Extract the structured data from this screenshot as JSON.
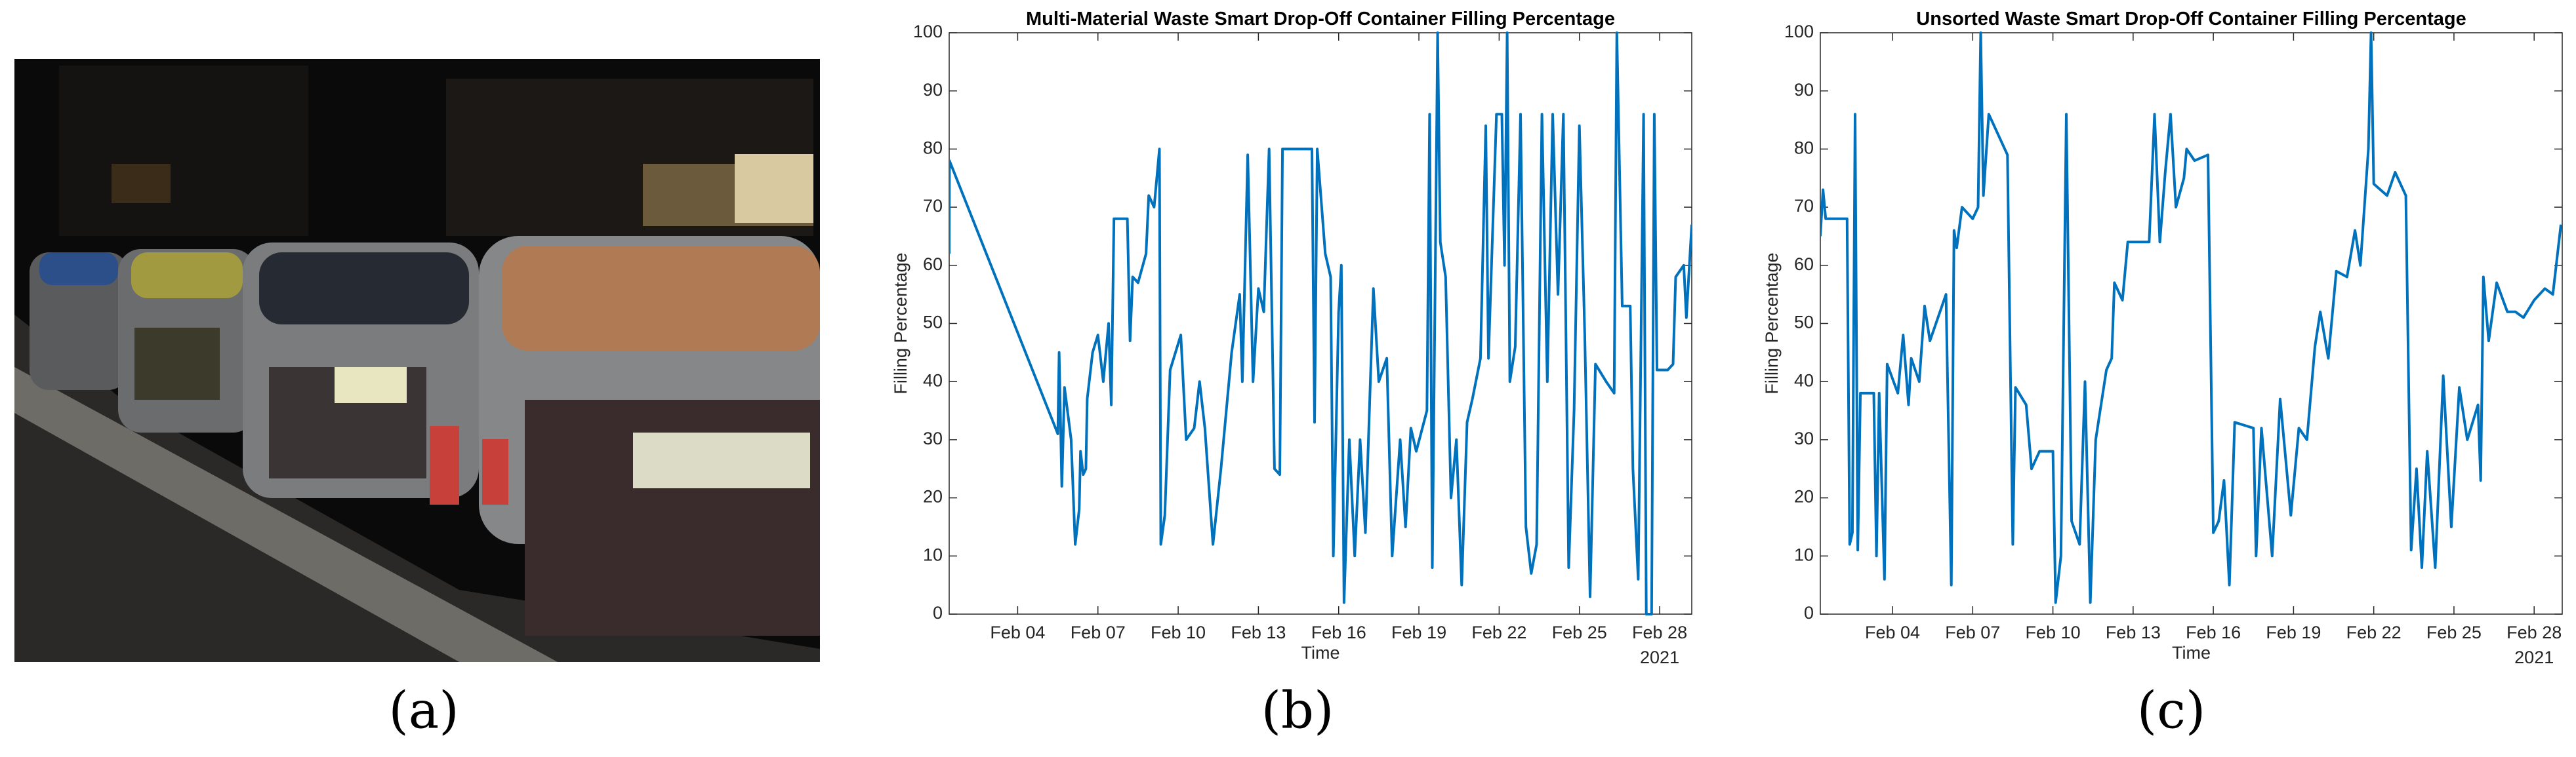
{
  "figure_labels": [
    "(a)",
    "(b)",
    "(c)"
  ],
  "chart_data": [
    {
      "type": "line",
      "title": "Multi-Material Waste Smart Drop-Off Container Filling Percentage",
      "xlabel": "Time",
      "ylabel": "Filling Percentage",
      "date_annotation": "2021",
      "color": "#0072bd",
      "xlim": [
        1.44,
        29.2
      ],
      "ylim": [
        0,
        100
      ],
      "xticks": [
        {
          "value": 4,
          "label": "Feb 04"
        },
        {
          "value": 7,
          "label": "Feb 07"
        },
        {
          "value": 10,
          "label": "Feb 10"
        },
        {
          "value": 13,
          "label": "Feb 13"
        },
        {
          "value": 16,
          "label": "Feb 16"
        },
        {
          "value": 19,
          "label": "Feb 19"
        },
        {
          "value": 22,
          "label": "Feb 22"
        },
        {
          "value": 25,
          "label": "Feb 25"
        },
        {
          "value": 28,
          "label": "Feb 28"
        }
      ],
      "yticks": [
        0,
        10,
        20,
        30,
        40,
        50,
        60,
        70,
        80,
        90,
        100
      ],
      "x": [
        1.44,
        1.45,
        5.5,
        5.55,
        5.65,
        5.75,
        6.0,
        6.15,
        6.3,
        6.35,
        6.45,
        6.55,
        6.6,
        6.8,
        7.0,
        7.2,
        7.4,
        7.5,
        7.6,
        8.1,
        8.2,
        8.3,
        8.5,
        8.8,
        8.9,
        9.1,
        9.3,
        9.35,
        9.5,
        9.7,
        10.1,
        10.3,
        10.6,
        10.8,
        11.0,
        11.3,
        11.6,
        12.0,
        12.3,
        12.4,
        12.6,
        12.8,
        13.0,
        13.2,
        13.4,
        13.6,
        13.8,
        13.9,
        15.0,
        15.1,
        15.2,
        15.5,
        15.7,
        15.8,
        16.0,
        16.1,
        16.2,
        16.4,
        16.6,
        16.8,
        17.0,
        17.3,
        17.5,
        17.8,
        18.0,
        18.3,
        18.5,
        18.7,
        18.9,
        19.3,
        19.4,
        19.5,
        19.7,
        19.8,
        20.0,
        20.2,
        20.4,
        20.6,
        20.8,
        21.0,
        21.3,
        21.5,
        21.6,
        21.9,
        22.1,
        22.2,
        22.3,
        22.4,
        22.6,
        22.8,
        23.0,
        23.2,
        23.4,
        23.6,
        23.8,
        24.0,
        24.2,
        24.4,
        24.6,
        24.8,
        25.0,
        25.2,
        25.4,
        25.6,
        26.0,
        26.3,
        26.4,
        26.6,
        26.9,
        27.0,
        27.2,
        27.4,
        27.5,
        27.7,
        27.8,
        27.9,
        28.3,
        28.5,
        28.6,
        28.9,
        29.0,
        29.2
      ],
      "values": [
        62,
        78,
        31,
        45,
        22,
        39,
        30,
        12,
        18,
        28,
        24,
        25,
        37,
        45,
        48,
        40,
        50,
        36,
        68,
        68,
        47,
        58,
        57,
        62,
        72,
        70,
        80,
        12,
        17,
        42,
        48,
        30,
        32,
        40,
        32,
        12,
        25,
        45,
        55,
        40,
        79,
        40,
        56,
        52,
        80,
        25,
        24,
        80,
        80,
        33,
        80,
        62,
        58,
        10,
        52,
        60,
        2,
        30,
        10,
        30,
        14,
        56,
        40,
        44,
        10,
        30,
        15,
        32,
        28,
        35,
        86,
        8,
        100,
        64,
        58,
        20,
        30,
        5,
        33,
        37,
        44,
        84,
        44,
        86,
        86,
        60,
        100,
        40,
        46,
        86,
        15,
        7,
        12,
        86,
        40,
        86,
        55,
        86,
        8,
        35,
        84,
        48,
        3,
        43,
        40,
        38,
        100,
        53,
        53,
        25,
        6,
        86,
        0,
        0,
        86,
        42,
        42,
        43,
        58,
        60,
        51,
        67
      ]
    },
    {
      "type": "line",
      "title": "Unsorted Waste Smart Drop-Off Container Filling Percentage",
      "xlabel": "Time",
      "ylabel": "Filling Percentage",
      "date_annotation": "2021",
      "color": "#0072bd",
      "xlim": [
        1.3,
        29.05
      ],
      "ylim": [
        0,
        100
      ],
      "xticks": [
        {
          "value": 4,
          "label": "Feb 04"
        },
        {
          "value": 7,
          "label": "Feb 07"
        },
        {
          "value": 10,
          "label": "Feb 10"
        },
        {
          "value": 13,
          "label": "Feb 13"
        },
        {
          "value": 16,
          "label": "Feb 16"
        },
        {
          "value": 19,
          "label": "Feb 19"
        },
        {
          "value": 22,
          "label": "Feb 22"
        },
        {
          "value": 25,
          "label": "Feb 25"
        },
        {
          "value": 28,
          "label": "Feb 28"
        }
      ],
      "yticks": [
        0,
        10,
        20,
        30,
        40,
        50,
        60,
        70,
        80,
        90,
        100
      ],
      "x": [
        1.3,
        1.4,
        1.5,
        2.3,
        2.4,
        2.5,
        2.6,
        2.7,
        2.8,
        3.3,
        3.4,
        3.5,
        3.7,
        3.8,
        4.2,
        4.4,
        4.6,
        4.7,
        5.0,
        5.2,
        5.4,
        6.0,
        6.2,
        6.3,
        6.4,
        6.6,
        7.0,
        7.2,
        7.3,
        7.4,
        7.6,
        8.0,
        8.3,
        8.5,
        8.6,
        9.0,
        9.2,
        9.5,
        10.0,
        10.1,
        10.3,
        10.5,
        10.7,
        11.0,
        11.2,
        11.4,
        11.6,
        12.0,
        12.2,
        12.3,
        12.6,
        12.8,
        13.6,
        13.8,
        14.0,
        14.2,
        14.4,
        14.6,
        14.9,
        15.0,
        15.3,
        15.8,
        16.0,
        16.2,
        16.4,
        16.6,
        16.8,
        17.5,
        17.6,
        17.8,
        18.2,
        18.5,
        18.9,
        19.2,
        19.5,
        19.8,
        20.0,
        20.3,
        20.6,
        21.0,
        21.3,
        21.5,
        21.8,
        21.9,
        22.0,
        22.5,
        22.8,
        23.2,
        23.4,
        23.6,
        23.8,
        24.0,
        24.3,
        24.6,
        24.9,
        25.2,
        25.5,
        25.9,
        26.0,
        26.1,
        26.3,
        26.6,
        27.0,
        27.3,
        27.6,
        28.0,
        28.4,
        28.7,
        29.0
      ],
      "values": [
        65,
        73,
        68,
        68,
        12,
        14,
        86,
        11,
        38,
        38,
        10,
        38,
        6,
        43,
        38,
        48,
        36,
        44,
        40,
        53,
        47,
        55,
        5,
        66,
        63,
        70,
        68,
        70,
        100,
        72,
        86,
        82,
        79,
        12,
        39,
        36,
        25,
        28,
        28,
        2,
        10,
        86,
        16,
        12,
        40,
        2,
        30,
        42,
        44,
        57,
        54,
        64,
        64,
        86,
        64,
        76,
        86,
        70,
        75,
        80,
        78,
        79,
        14,
        16,
        23,
        5,
        33,
        32,
        10,
        32,
        10,
        37,
        17,
        32,
        30,
        46,
        52,
        44,
        59,
        58,
        66,
        60,
        80,
        100,
        74,
        72,
        76,
        72,
        11,
        25,
        8,
        28,
        8,
        41,
        15,
        39,
        30,
        36,
        23,
        58,
        47,
        57,
        52,
        52,
        51,
        54,
        56,
        55,
        67
      ]
    }
  ]
}
